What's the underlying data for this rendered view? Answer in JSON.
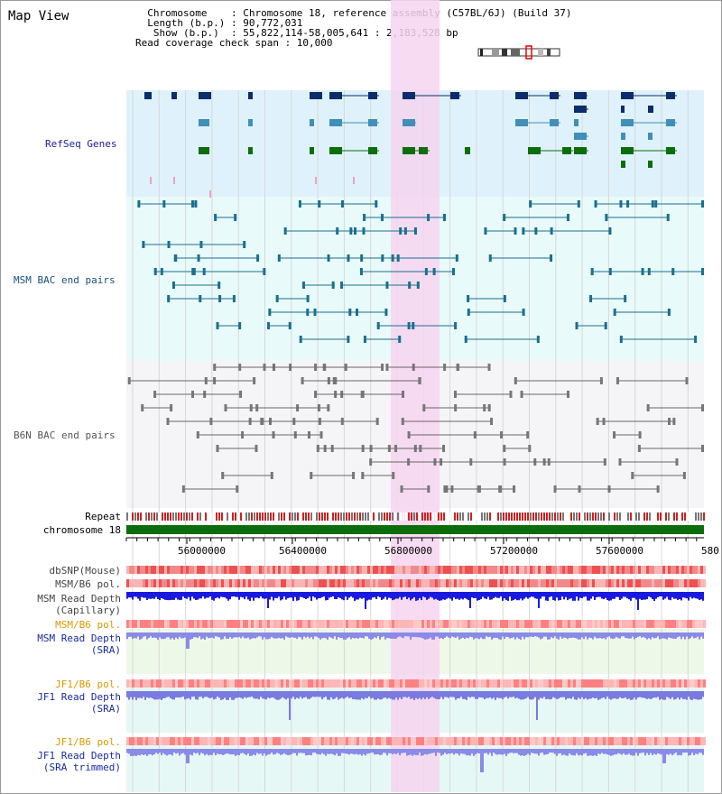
{
  "title": "Map View",
  "header": {
    "lines": [
      "  Chromosome    : Chromosome 18, reference assembly (C57BL/6J) (Build 37)",
      "  Length (b.p.) : 90,772,031",
      "   Show (b.p.)  : 55,822,114-58,005,641 : 2,183,528 bp",
      "Read coverage check span : 10,000"
    ]
  },
  "tracks": {
    "refseq": "RefSeq Genes",
    "msm_bac": "MSM BAC end pairs",
    "b6n_bac": "B6N BAC end pairs",
    "repeat": "Repeat",
    "chromosome": "chromosome 18"
  },
  "axis": {
    "ticks": [
      "56000000",
      "56400000",
      "56800000",
      "57200000",
      "57600000",
      "580"
    ]
  },
  "lower_tracks": {
    "dbsnp": "dbSNP(Mouse)",
    "msm_b6_pol": "MSM/B6 pol.",
    "msm_read_depth_cap_1": "MSM Read Depth",
    "msm_read_depth_cap_2": "(Capillary)",
    "msm_b6_pol_2": "MSM/B6 pol.",
    "msm_read_depth_sra_1": "MSM Read Depth",
    "msm_read_depth_sra_2": "(SRA)",
    "jf1_b6_pol": "JF1/B6 pol.",
    "jf1_read_depth_sra_1": "JF1 Read Depth",
    "jf1_read_depth_sra_2": "(SRA)",
    "jf1_b6_pol_2": "JF1/B6 pol.",
    "jf1_read_depth_trim_1": "JF1 Read Depth",
    "jf1_read_depth_trim_2": "(SRA trimmed)"
  },
  "colors": {
    "refseq_bg": "#dff2fb",
    "msm_bg": "#e9fafa",
    "b6n_bg": "#f5f5f8",
    "highlight": "#f6d5f0",
    "refseq_label": "#2020a0",
    "msm_label": "#1a4f7a",
    "orange_label": "#d99a00",
    "blue_label": "#1a2aa0",
    "chrom_bar": "#0b6e0b"
  }
}
